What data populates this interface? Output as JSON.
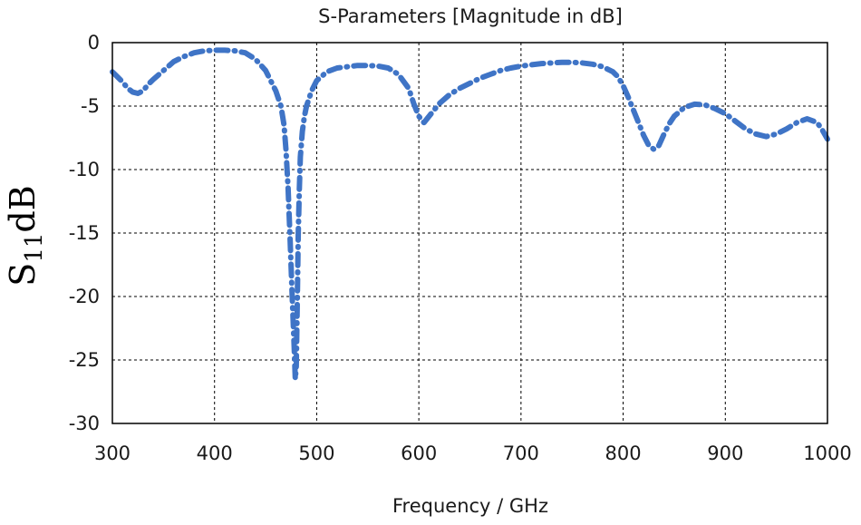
{
  "chart_data": {
    "type": "line",
    "title": "S-Parameters [Magnitude in dB]",
    "xlabel": "Frequency / GHz",
    "ylabel": {
      "main": "S",
      "subscript": "11",
      "suffix": "dB"
    },
    "xlim": [
      300,
      1000
    ],
    "ylim": [
      -30,
      0
    ],
    "xticks": [
      300,
      400,
      500,
      600,
      700,
      800,
      900,
      1000
    ],
    "yticks": [
      0,
      -5,
      -10,
      -15,
      -20,
      -25,
      -30
    ],
    "grid": true,
    "line_style": "dash-dot",
    "series": [
      {
        "color": "#3f74c6",
        "x": [
          300,
          305,
          310,
          315,
          320,
          325,
          330,
          335,
          340,
          350,
          360,
          370,
          380,
          390,
          400,
          410,
          420,
          430,
          440,
          450,
          460,
          465,
          468,
          470,
          472,
          474,
          476,
          478,
          479,
          480,
          481,
          482,
          483,
          484,
          486,
          488,
          490,
          495,
          500,
          510,
          520,
          530,
          540,
          550,
          560,
          570,
          580,
          590,
          595,
          600,
          605,
          610,
          620,
          630,
          640,
          650,
          660,
          670,
          680,
          690,
          700,
          710,
          720,
          730,
          740,
          750,
          760,
          770,
          780,
          790,
          795,
          800,
          805,
          810,
          815,
          820,
          825,
          830,
          835,
          840,
          845,
          850,
          860,
          870,
          880,
          890,
          900,
          910,
          920,
          930,
          940,
          950,
          960,
          970,
          980,
          990,
          995,
          1000
        ],
        "values": [
          -2.3,
          -2.7,
          -3.1,
          -3.6,
          -3.9,
          -4.0,
          -3.8,
          -3.3,
          -2.9,
          -2.2,
          -1.5,
          -1.1,
          -0.8,
          -0.65,
          -0.6,
          -0.6,
          -0.65,
          -0.8,
          -1.3,
          -2.2,
          -3.8,
          -5.0,
          -6.5,
          -8.5,
          -11.5,
          -15.5,
          -20.0,
          -24.0,
          -26.5,
          -25.5,
          -20.5,
          -15.0,
          -11.5,
          -9.0,
          -7.0,
          -5.8,
          -5.0,
          -3.8,
          -3.0,
          -2.3,
          -2.0,
          -1.9,
          -1.8,
          -1.8,
          -1.85,
          -2.0,
          -2.5,
          -3.6,
          -4.8,
          -5.8,
          -6.3,
          -5.8,
          -4.8,
          -4.1,
          -3.6,
          -3.2,
          -2.8,
          -2.5,
          -2.2,
          -2.0,
          -1.85,
          -1.75,
          -1.65,
          -1.6,
          -1.55,
          -1.55,
          -1.6,
          -1.7,
          -1.9,
          -2.3,
          -2.7,
          -3.4,
          -4.3,
          -5.3,
          -6.3,
          -7.3,
          -8.1,
          -8.4,
          -8.1,
          -7.2,
          -6.4,
          -5.8,
          -5.1,
          -4.85,
          -4.9,
          -5.2,
          -5.6,
          -6.2,
          -6.8,
          -7.2,
          -7.4,
          -7.2,
          -6.8,
          -6.3,
          -6.0,
          -6.3,
          -6.9,
          -7.6
        ]
      }
    ]
  }
}
